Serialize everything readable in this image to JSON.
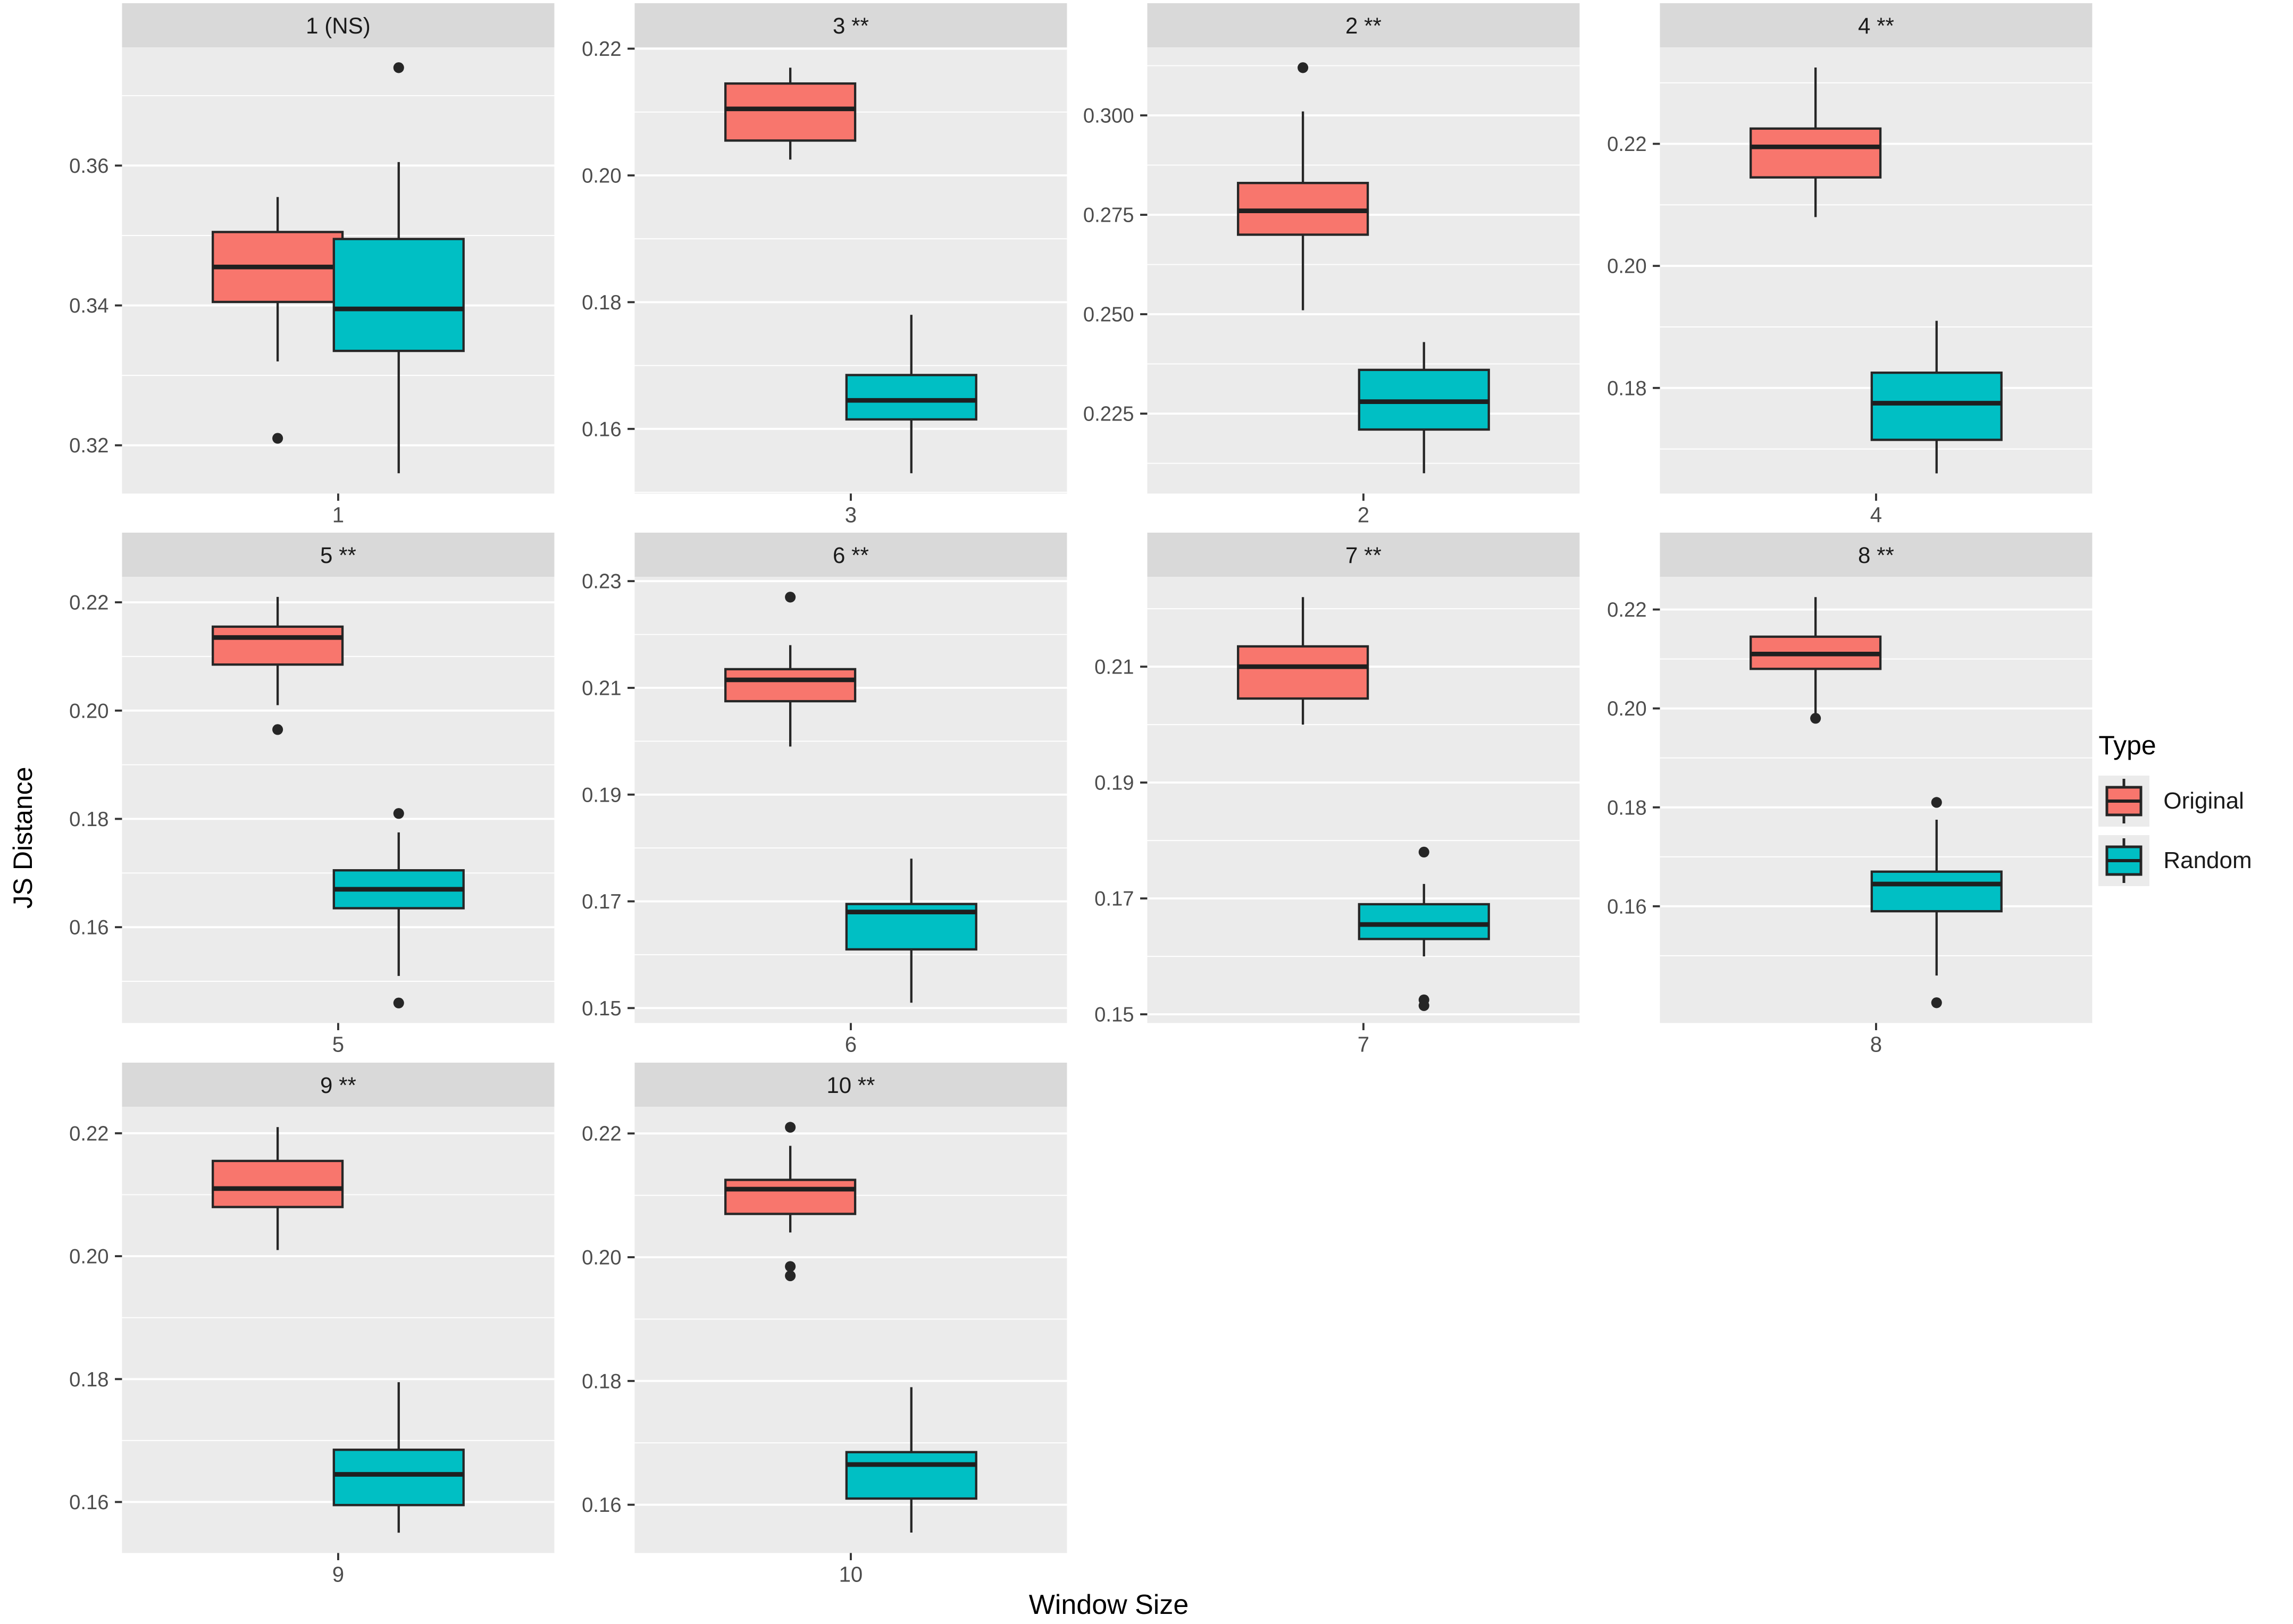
{
  "chart_data": {
    "type": "boxplot",
    "title": "",
    "xlabel": "Window Size",
    "ylabel": "JS Distance",
    "layout": {
      "grid": "4x3 facets, free y scales",
      "legend_position": "right",
      "gridlines": "white major+minor on gray panel"
    },
    "style": {
      "panel_bg": "#ebebeb",
      "strip_bg": "#d9d9d9",
      "grid_color": "#ffffff",
      "tick_text_color": "#4d4d4d",
      "box_stroke": "#262626",
      "original_fill": "#F8766D",
      "random_fill": "#00BFC4"
    },
    "legend": {
      "title": "Type",
      "entries": [
        {
          "label": "Original",
          "color": "#F8766D"
        },
        {
          "label": "Random",
          "color": "#00BFC4"
        }
      ]
    },
    "facets": [
      {
        "title": "1 (NS)",
        "x_tick": "1",
        "ylim": [
          0.3131,
          0.3769
        ],
        "yticks": [
          0.32,
          0.34,
          0.36
        ],
        "ytick_labels": [
          "0.32",
          "0.34",
          "0.36"
        ],
        "original": {
          "low": 0.332,
          "q1": 0.3405,
          "median": 0.3455,
          "q3": 0.3505,
          "high": 0.3555,
          "outliers": [
            0.321
          ]
        },
        "random": {
          "low": 0.316,
          "q1": 0.3335,
          "median": 0.3395,
          "q3": 0.3495,
          "high": 0.3605,
          "outliers": [
            0.374
          ]
        }
      },
      {
        "title": "3 **",
        "x_tick": "3",
        "ylim": [
          0.1498,
          0.2202
        ],
        "yticks": [
          0.16,
          0.18,
          0.2,
          0.22
        ],
        "ytick_labels": [
          "0.16",
          "0.18",
          "0.20",
          "0.22"
        ],
        "original": {
          "low": 0.2025,
          "q1": 0.2055,
          "median": 0.2105,
          "q3": 0.2145,
          "high": 0.217,
          "outliers": []
        },
        "random": {
          "low": 0.153,
          "q1": 0.1615,
          "median": 0.1645,
          "q3": 0.1685,
          "high": 0.178,
          "outliers": []
        }
      },
      {
        "title": "2 **",
        "x_tick": "2",
        "ylim": [
          0.2049,
          0.3171
        ],
        "yticks": [
          0.225,
          0.25,
          0.275,
          0.3
        ],
        "ytick_labels": [
          "0.225",
          "0.250",
          "0.275",
          "0.300"
        ],
        "original": {
          "low": 0.251,
          "q1": 0.27,
          "median": 0.276,
          "q3": 0.283,
          "high": 0.301,
          "outliers": [
            0.312
          ]
        },
        "random": {
          "low": 0.21,
          "q1": 0.221,
          "median": 0.228,
          "q3": 0.236,
          "high": 0.243,
          "outliers": []
        }
      },
      {
        "title": "4 **",
        "x_tick": "4",
        "ylim": [
          0.1627,
          0.2358
        ],
        "yticks": [
          0.18,
          0.2,
          0.22
        ],
        "ytick_labels": [
          "0.18",
          "0.20",
          "0.22"
        ],
        "original": {
          "low": 0.208,
          "q1": 0.2145,
          "median": 0.2195,
          "q3": 0.2225,
          "high": 0.2325,
          "outliers": []
        },
        "random": {
          "low": 0.166,
          "q1": 0.1715,
          "median": 0.1775,
          "q3": 0.1825,
          "high": 0.191,
          "outliers": []
        }
      },
      {
        "title": "5 **",
        "x_tick": "5",
        "ylim": [
          0.1423,
          0.2247
        ],
        "yticks": [
          0.16,
          0.18,
          0.2,
          0.22
        ],
        "ytick_labels": [
          "0.16",
          "0.18",
          "0.20",
          "0.22"
        ],
        "original": {
          "low": 0.201,
          "q1": 0.2085,
          "median": 0.2135,
          "q3": 0.2155,
          "high": 0.221,
          "outliers": [
            0.1965
          ]
        },
        "random": {
          "low": 0.151,
          "q1": 0.1635,
          "median": 0.167,
          "q3": 0.1705,
          "high": 0.1775,
          "outliers": [
            0.181,
            0.146
          ]
        }
      },
      {
        "title": "6 **",
        "x_tick": "6",
        "ylim": [
          0.1472,
          0.2308
        ],
        "yticks": [
          0.15,
          0.17,
          0.19,
          0.21,
          0.23
        ],
        "ytick_labels": [
          "0.15",
          "0.17",
          "0.19",
          "0.21",
          "0.23"
        ],
        "original": {
          "low": 0.199,
          "q1": 0.2075,
          "median": 0.2115,
          "q3": 0.2135,
          "high": 0.218,
          "outliers": [
            0.227
          ]
        },
        "random": {
          "low": 0.151,
          "q1": 0.161,
          "median": 0.168,
          "q3": 0.1695,
          "high": 0.178,
          "outliers": []
        }
      },
      {
        "title": "7 **",
        "x_tick": "7",
        "ylim": [
          0.1485,
          0.2255
        ],
        "yticks": [
          0.15,
          0.17,
          0.19,
          0.21
        ],
        "ytick_labels": [
          "0.15",
          "0.17",
          "0.19",
          "0.21"
        ],
        "original": {
          "low": 0.2,
          "q1": 0.2045,
          "median": 0.21,
          "q3": 0.2135,
          "high": 0.222,
          "outliers": []
        },
        "random": {
          "low": 0.16,
          "q1": 0.163,
          "median": 0.1655,
          "q3": 0.169,
          "high": 0.1725,
          "outliers": [
            0.178,
            0.1525,
            0.1515
          ]
        }
      },
      {
        "title": "8 **",
        "x_tick": "8",
        "ylim": [
          0.1364,
          0.2266
        ],
        "yticks": [
          0.16,
          0.18,
          0.2,
          0.22
        ],
        "ytick_labels": [
          "0.16",
          "0.18",
          "0.20",
          "0.22"
        ],
        "original": {
          "low": 0.199,
          "q1": 0.208,
          "median": 0.211,
          "q3": 0.2145,
          "high": 0.2225,
          "outliers": [
            0.198
          ]
        },
        "random": {
          "low": 0.146,
          "q1": 0.159,
          "median": 0.1645,
          "q3": 0.167,
          "high": 0.1775,
          "outliers": [
            0.181,
            0.1405
          ]
        }
      },
      {
        "title": "9 **",
        "x_tick": "9",
        "ylim": [
          0.1517,
          0.2243
        ],
        "yticks": [
          0.16,
          0.18,
          0.2,
          0.22
        ],
        "ytick_labels": [
          "0.16",
          "0.18",
          "0.20",
          "0.22"
        ],
        "original": {
          "low": 0.201,
          "q1": 0.208,
          "median": 0.211,
          "q3": 0.2155,
          "high": 0.221,
          "outliers": []
        },
        "random": {
          "low": 0.155,
          "q1": 0.1595,
          "median": 0.1645,
          "q3": 0.1685,
          "high": 0.1795,
          "outliers": []
        }
      },
      {
        "title": "10 **",
        "x_tick": "10",
        "ylim": [
          0.1522,
          0.2243
        ],
        "yticks": [
          0.16,
          0.18,
          0.2,
          0.22
        ],
        "ytick_labels": [
          "0.16",
          "0.18",
          "0.20",
          "0.22"
        ],
        "original": {
          "low": 0.204,
          "q1": 0.207,
          "median": 0.211,
          "q3": 0.2125,
          "high": 0.218,
          "outliers": [
            0.221,
            0.1985,
            0.197
          ]
        },
        "random": {
          "low": 0.1555,
          "q1": 0.161,
          "median": 0.1665,
          "q3": 0.1685,
          "high": 0.179,
          "outliers": []
        }
      }
    ]
  }
}
